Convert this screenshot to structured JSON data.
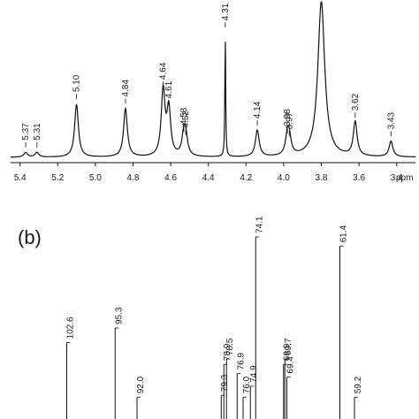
{
  "chart_data": [
    {
      "type": "line",
      "panel": "",
      "xlabel": "ppm",
      "xlim": [
        5.45,
        3.3
      ],
      "x_reversed": true,
      "x_ticks": [
        "5.4",
        "5.2",
        "5.0",
        "4.8",
        "4.6",
        "4.4",
        "4.2",
        "4.0",
        "3.8",
        "3.6",
        "3.4"
      ],
      "peaks": [
        {
          "ppm": 5.37,
          "label": "5.37",
          "height": 0.03
        },
        {
          "ppm": 5.31,
          "label": "5.31",
          "height": 0.03
        },
        {
          "ppm": 5.1,
          "label": "5.10",
          "height": 0.34
        },
        {
          "ppm": 4.84,
          "label": "4.84",
          "height": 0.31
        },
        {
          "ppm": 4.64,
          "label": "4.64",
          "height": 0.42
        },
        {
          "ppm": 4.61,
          "label": "4.61",
          "height": 0.3
        },
        {
          "ppm": 4.53,
          "label": "4.53",
          "height": 0.13
        },
        {
          "ppm": 4.52,
          "label": "4.52",
          "height": 0.11
        },
        {
          "ppm": 4.31,
          "label": "4.31",
          "height": 0.8
        },
        {
          "ppm": 4.14,
          "label": "4.14",
          "height": 0.17
        },
        {
          "ppm": 3.98,
          "label": "3.98",
          "height": 0.12
        },
        {
          "ppm": 3.97,
          "label": "3.97",
          "height": 0.1
        },
        {
          "ppm": 3.8,
          "label": "",
          "height": 1.0
        },
        {
          "ppm": 3.62,
          "label": "3.62",
          "height": 0.22
        },
        {
          "ppm": 3.43,
          "label": "3.43",
          "height": 0.1
        }
      ]
    },
    {
      "type": "line",
      "panel": "(b)",
      "xlim": [
        110,
        50
      ],
      "x_reversed": true,
      "peaks": [
        {
          "ppm": 102.6,
          "label": "102.6",
          "height": 0.42
        },
        {
          "ppm": 95.3,
          "label": "95.3",
          "height": 0.5
        },
        {
          "ppm": 92.0,
          "label": "92.0",
          "height": 0.12
        },
        {
          "ppm": 79.3,
          "label": "79.3",
          "height": 0.13
        },
        {
          "ppm": 78.9,
          "label": "78.9",
          "height": 0.3
        },
        {
          "ppm": 78.5,
          "label": "78.5",
          "height": 0.33
        },
        {
          "ppm": 76.9,
          "label": "76.9",
          "height": 0.25
        },
        {
          "ppm": 76.0,
          "label": "76.0",
          "height": 0.12
        },
        {
          "ppm": 74.9,
          "label": "74.9",
          "height": 0.18
        },
        {
          "ppm": 74.1,
          "label": "74.1",
          "height": 1.0
        },
        {
          "ppm": 69.9,
          "label": "69.9",
          "height": 0.3
        },
        {
          "ppm": 69.7,
          "label": "69.7",
          "height": 0.33
        },
        {
          "ppm": 69.4,
          "label": "69.4",
          "height": 0.23
        },
        {
          "ppm": 61.4,
          "label": "61.4",
          "height": 0.95
        },
        {
          "ppm": 59.2,
          "label": "59.2",
          "height": 0.12
        }
      ]
    }
  ]
}
